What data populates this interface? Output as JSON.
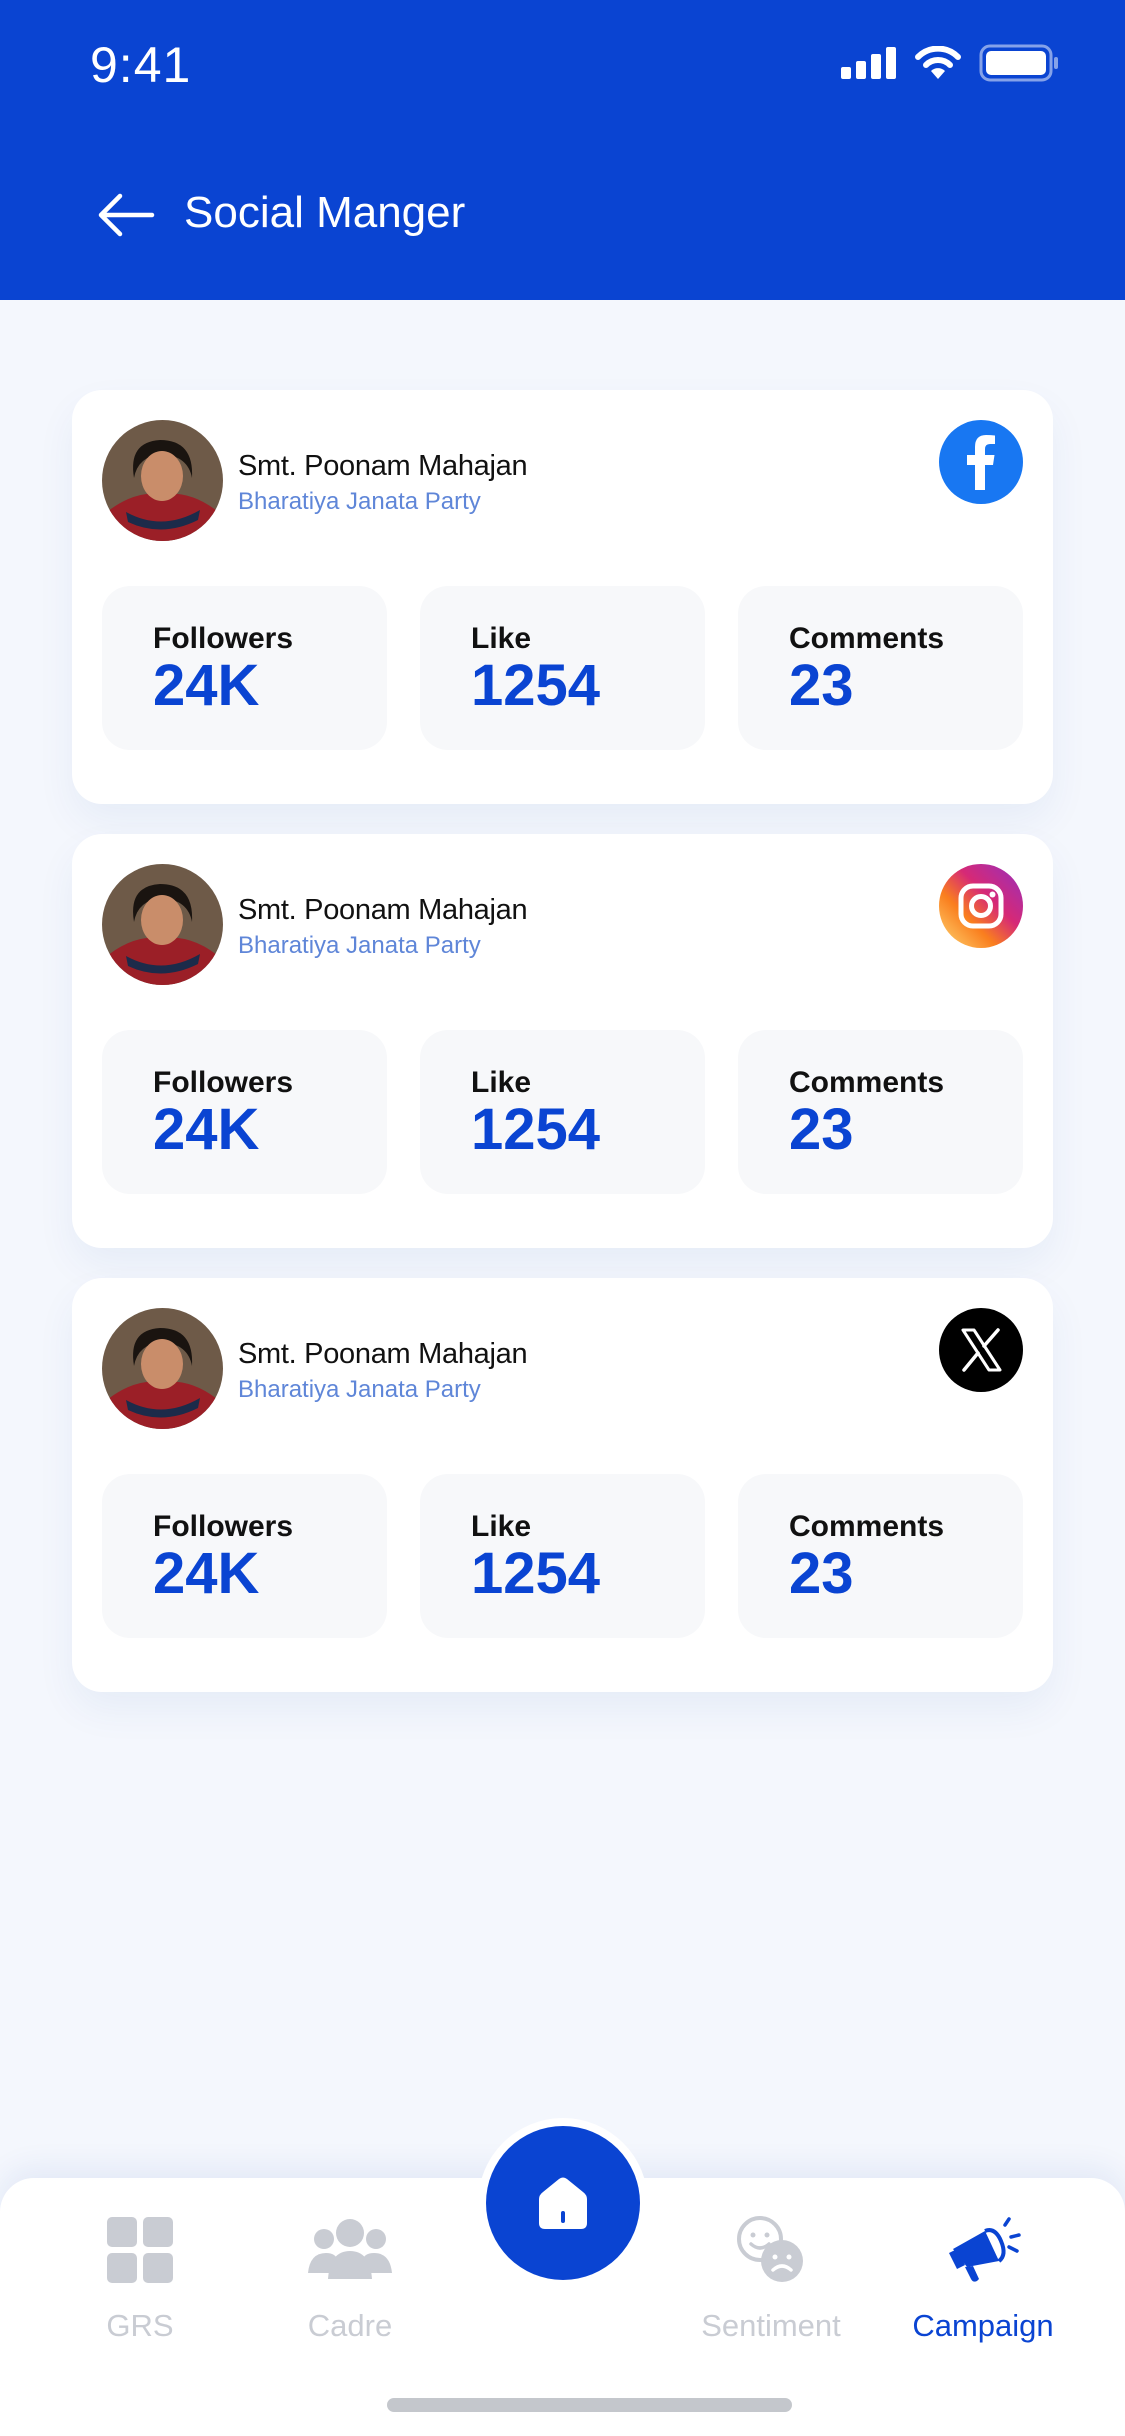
{
  "status_bar": {
    "time": "9:41"
  },
  "header": {
    "title": "Social Manger"
  },
  "cards": [
    {
      "platform_icon": "facebook-icon",
      "badge_color": "#1877f2",
      "name": "Smt. Poonam Mahajan",
      "party": "Bharatiya Janata Party",
      "stats": [
        {
          "label": "Followers",
          "value": "24K"
        },
        {
          "label": "Like",
          "value": "1254"
        },
        {
          "label": "Comments",
          "value": "23"
        }
      ]
    },
    {
      "platform_icon": "instagram-icon",
      "badge_color": "#d62976",
      "name": "Smt. Poonam Mahajan",
      "party": "Bharatiya Janata Party",
      "stats": [
        {
          "label": "Followers",
          "value": "24K"
        },
        {
          "label": "Like",
          "value": "1254"
        },
        {
          "label": "Comments",
          "value": "23"
        }
      ]
    },
    {
      "platform_icon": "x-icon",
      "badge_color": "#000000",
      "name": "Smt. Poonam Mahajan",
      "party": "Bharatiya Janata Party",
      "stats": [
        {
          "label": "Followers",
          "value": "24K"
        },
        {
          "label": "Like",
          "value": "1254"
        },
        {
          "label": "Comments",
          "value": "23"
        }
      ]
    }
  ],
  "bottom_nav": {
    "items": [
      {
        "label": "GRS",
        "icon": "grid-icon",
        "active": false
      },
      {
        "label": "Cadre",
        "icon": "people-icon",
        "active": false
      },
      {
        "label": "Sentiment",
        "icon": "mood-icon",
        "active": false
      },
      {
        "label": "Campaign",
        "icon": "megaphone-icon",
        "active": true
      }
    ],
    "home_icon": "home-icon"
  },
  "colors": {
    "primary": "#0a44d2",
    "background": "#f4f7fd",
    "inactive": "#c9ccd3"
  }
}
